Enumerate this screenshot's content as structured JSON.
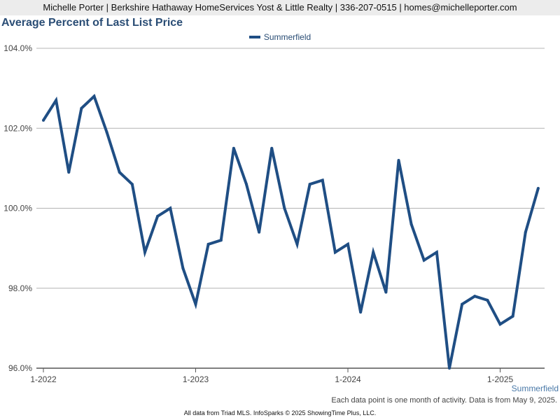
{
  "header": {
    "text": "Michelle Porter | Berkshire Hathaway HomeServices Yost & Little Realty | 336-207-0515 | homes@michelleporter.com"
  },
  "colors": {
    "series": "#1f4e84",
    "title": "#2a4d75",
    "grid": "#b4b4b4",
    "axis": "#555555"
  },
  "chart_data": {
    "type": "line",
    "title": "Average Percent of Last List Price",
    "legend_position": "top-center",
    "grid": true,
    "ylim": [
      96.0,
      104.0
    ],
    "y_ticks": [
      96.0,
      98.0,
      100.0,
      102.0,
      104.0
    ],
    "y_tick_labels": [
      "96.0%",
      "98.0%",
      "100.0%",
      "102.0%",
      "104.0%"
    ],
    "x_ticks": [
      "1-2022",
      "1-2023",
      "1-2024",
      "1-2025"
    ],
    "x": [
      "2022-01",
      "2022-02",
      "2022-03",
      "2022-04",
      "2022-05",
      "2022-06",
      "2022-07",
      "2022-08",
      "2022-09",
      "2022-10",
      "2022-11",
      "2022-12",
      "2023-01",
      "2023-02",
      "2023-03",
      "2023-04",
      "2023-05",
      "2023-06",
      "2023-07",
      "2023-08",
      "2023-09",
      "2023-10",
      "2023-11",
      "2023-12",
      "2024-01",
      "2024-02",
      "2024-03",
      "2024-04",
      "2024-05",
      "2024-06",
      "2024-07",
      "2024-08",
      "2024-09",
      "2024-10",
      "2024-11",
      "2024-12",
      "2025-01",
      "2025-02",
      "2025-03",
      "2025-04"
    ],
    "series": [
      {
        "name": "Summerfield",
        "values": [
          102.2,
          102.7,
          100.9,
          102.5,
          102.8,
          101.9,
          100.9,
          100.6,
          98.9,
          99.8,
          100.0,
          98.5,
          97.6,
          99.1,
          99.2,
          101.5,
          100.6,
          99.4,
          101.5,
          100.0,
          99.1,
          100.6,
          100.7,
          98.9,
          99.1,
          97.4,
          98.9,
          97.9,
          101.2,
          99.6,
          98.7,
          98.9,
          96.0,
          97.6,
          97.8,
          97.7,
          97.1,
          97.3,
          99.4,
          100.5
        ]
      }
    ]
  },
  "footer": {
    "series_label": "Summerfield",
    "note": "Each data point is one month of activity. Data is from May 9, 2025.",
    "source": "All data from Triad MLS. InfoSparks © 2025 ShowingTime Plus, LLC."
  }
}
